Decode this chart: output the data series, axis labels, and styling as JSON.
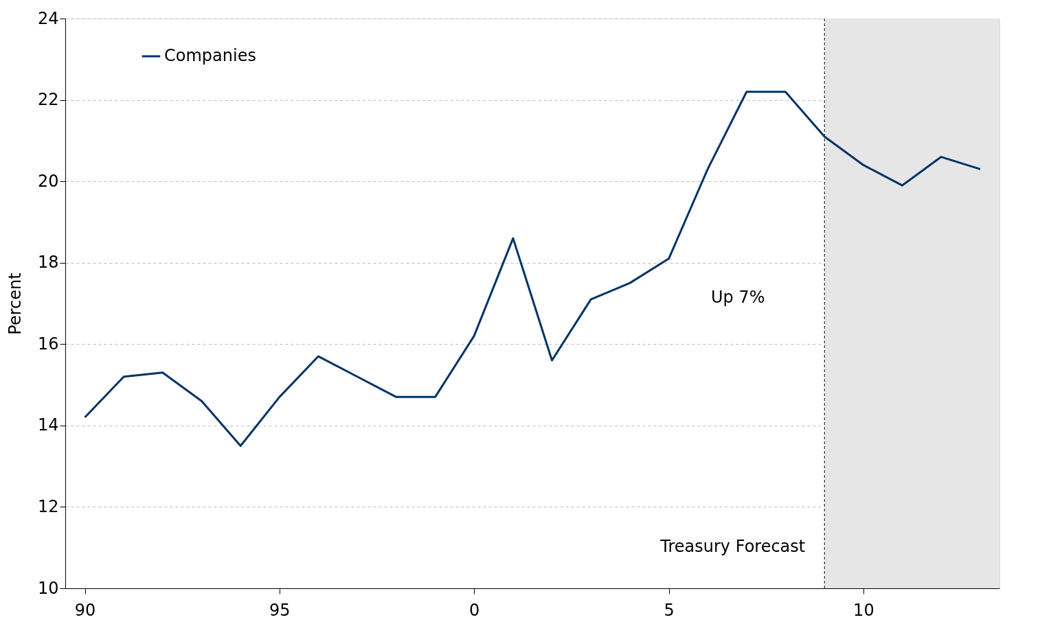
{
  "chart_data": {
    "type": "line",
    "ylabel": "Percent",
    "x": [
      "1990",
      "1991",
      "1992",
      "1993",
      "1994",
      "1995",
      "1996",
      "1997",
      "1998",
      "1999",
      "2000",
      "2001",
      "2002",
      "2003",
      "2004",
      "2005",
      "2006",
      "2007",
      "2008",
      "2009",
      "2010",
      "2011",
      "2012",
      "2013"
    ],
    "series": [
      {
        "name": "Companies",
        "color": "#003366",
        "values": [
          14.2,
          15.2,
          15.3,
          14.6,
          13.5,
          14.7,
          15.7,
          15.2,
          14.7,
          14.7,
          16.2,
          18.6,
          15.6,
          17.1,
          17.5,
          18.1,
          20.3,
          22.2,
          22.2,
          21.1,
          20.4,
          19.9,
          20.6,
          20.3
        ]
      }
    ],
    "xlim": [
      "1989-07",
      "2013-07"
    ],
    "xticks": [
      {
        "value": "1990",
        "label": "90"
      },
      {
        "value": "1995",
        "label": "95"
      },
      {
        "value": "2000",
        "label": "0"
      },
      {
        "value": "2005",
        "label": "5"
      },
      {
        "value": "2010",
        "label": "10"
      }
    ],
    "ylim": [
      10,
      24
    ],
    "yticks": [
      10,
      12,
      14,
      16,
      18,
      20,
      22,
      24
    ],
    "bands": [
      {
        "axis": "x",
        "from": "2009",
        "to": "2013-07",
        "label": "Treasury Forecast",
        "color": "#e6e6e6"
      }
    ],
    "ref_lines": [
      {
        "axis": "x",
        "value": "2009",
        "label": null,
        "color": "#000000",
        "line_style": "dashed"
      }
    ],
    "annotations": [
      "Up 7%"
    ],
    "grid": "y",
    "legend": "top left",
    "marker": "none",
    "line_style": "solid"
  }
}
